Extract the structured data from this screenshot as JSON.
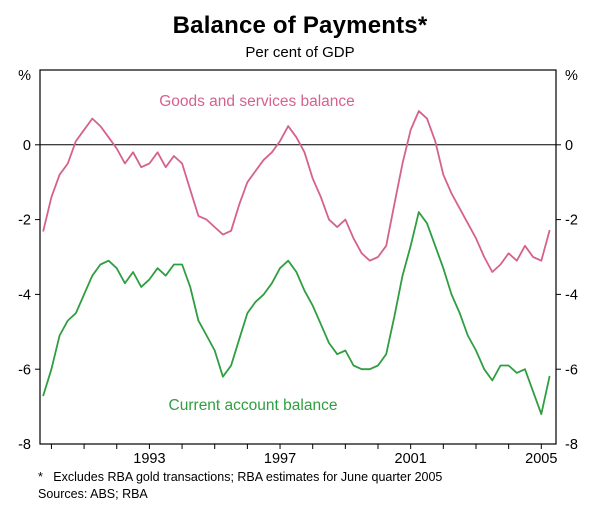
{
  "title": "Balance of Payments*",
  "subtitle": "Per cent of GDP",
  "footnote": "*   Excludes RBA gold transactions; RBA estimates for June quarter 2005",
  "sources": "Sources: ABS; RBA",
  "axes": {
    "left_unit": "%",
    "right_unit": "%"
  },
  "chart_data": {
    "type": "line",
    "title": "Balance of Payments*",
    "subtitle": "Per cent of GDP",
    "ylabel": "%",
    "ylim": [
      -8,
      2
    ],
    "grid": false,
    "legend_position": "inline-annotations",
    "frequency": "quarterly",
    "x_start": {
      "year": 1989,
      "quarter": 4
    },
    "x_end": {
      "year": 2005,
      "quarter": 2
    },
    "x_labeled_ticks": [
      1993,
      1997,
      2001,
      2005
    ],
    "y_labeled_ticks": [
      0,
      -2,
      -4,
      -6,
      -8
    ],
    "zero_line": true,
    "series": [
      {
        "name": "Goods and services balance",
        "color": "#d5618e",
        "values": [
          -2.3,
          -1.4,
          -0.8,
          -0.5,
          0.1,
          0.4,
          0.7,
          0.5,
          0.2,
          -0.1,
          -0.5,
          -0.2,
          -0.6,
          -0.5,
          -0.2,
          -0.6,
          -0.3,
          -0.5,
          -1.2,
          -1.9,
          -2.0,
          -2.2,
          -2.4,
          -2.3,
          -1.6,
          -1.0,
          -0.7,
          -0.4,
          -0.2,
          0.1,
          0.5,
          0.2,
          -0.2,
          -0.9,
          -1.4,
          -2.0,
          -2.2,
          -2.0,
          -2.5,
          -2.9,
          -3.1,
          -3.0,
          -2.7,
          -1.6,
          -0.5,
          0.4,
          0.9,
          0.7,
          0.1,
          -0.8,
          -1.3,
          -1.7,
          -2.1,
          -2.5,
          -3.0,
          -3.4,
          -3.2,
          -2.9,
          -3.1,
          -2.7,
          -3.0,
          -3.1,
          -2.3
        ]
      },
      {
        "name": "Current account balance",
        "color": "#2f9e41",
        "values": [
          -6.7,
          -6.0,
          -5.1,
          -4.7,
          -4.5,
          -4.0,
          -3.5,
          -3.2,
          -3.1,
          -3.3,
          -3.7,
          -3.4,
          -3.8,
          -3.6,
          -3.3,
          -3.5,
          -3.2,
          -3.2,
          -3.8,
          -4.7,
          -5.1,
          -5.5,
          -6.2,
          -5.9,
          -5.2,
          -4.5,
          -4.2,
          -4.0,
          -3.7,
          -3.3,
          -3.1,
          -3.4,
          -3.9,
          -4.3,
          -4.8,
          -5.3,
          -5.6,
          -5.5,
          -5.9,
          -6.0,
          -6.0,
          -5.9,
          -5.6,
          -4.6,
          -3.5,
          -2.7,
          -1.8,
          -2.1,
          -2.7,
          -3.3,
          -4.0,
          -4.5,
          -5.1,
          -5.5,
          -6.0,
          -6.3,
          -5.9,
          -5.9,
          -6.1,
          -6.0,
          -6.6,
          -7.2,
          -6.2
        ]
      }
    ]
  }
}
